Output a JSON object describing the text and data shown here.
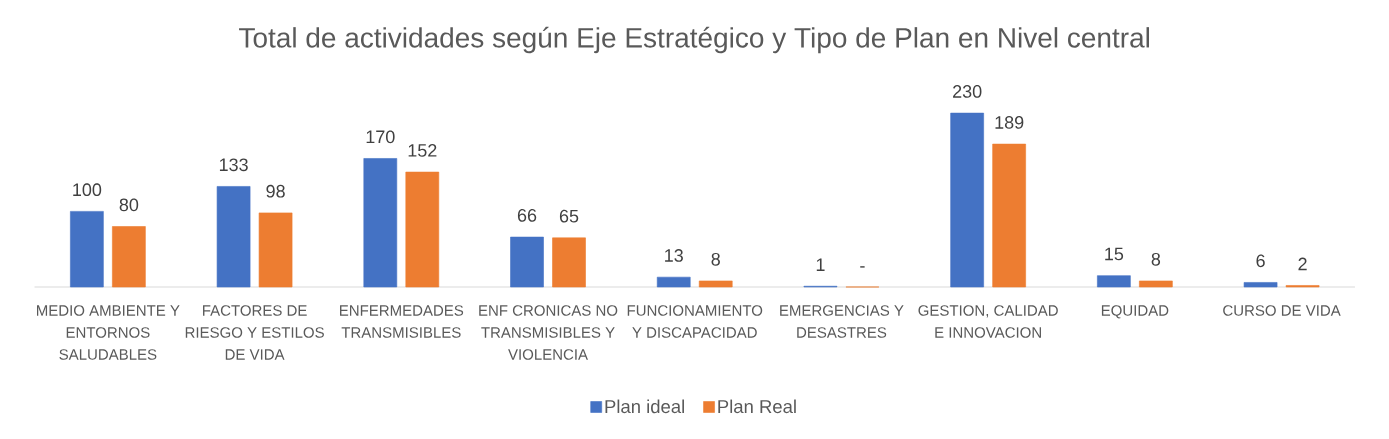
{
  "chart_data": {
    "type": "bar",
    "title": "Total de actividades según Eje Estratégico y Tipo de Plan en Nivel central",
    "categories": [
      "MEDIO AMBIENTE Y ENTORNOS SALUDABLES",
      "FACTORES DE RIESGO Y ESTILOS DE VIDA",
      "ENFERMEDADES TRANSMISIBLES",
      "ENF CRONICAS NO TRANSMISIBLES Y VIOLENCIA",
      "FUNCIONAMIENTO Y DISCAPACIDAD",
      "EMERGENCIAS Y DESASTRES",
      "GESTION, CALIDAD E INNOVACION",
      "EQUIDAD",
      "CURSO DE VIDA"
    ],
    "series": [
      {
        "name": "Plan ideal",
        "color": "#4472c4",
        "values": [
          100,
          133,
          170,
          66,
          13,
          1,
          230,
          15,
          6
        ],
        "value_labels": [
          "100",
          "133",
          "170",
          "66",
          "13",
          "1",
          "230",
          "15",
          "6"
        ]
      },
      {
        "name": "Plan Real",
        "color": "#ed7d31",
        "values": [
          80,
          98,
          152,
          65,
          8,
          0,
          189,
          8,
          2
        ],
        "value_labels": [
          "80",
          "98",
          "152",
          "65",
          "8",
          "-",
          "189",
          "8",
          "2"
        ]
      }
    ],
    "legend": "bottom",
    "tick_labels": "x"
  }
}
